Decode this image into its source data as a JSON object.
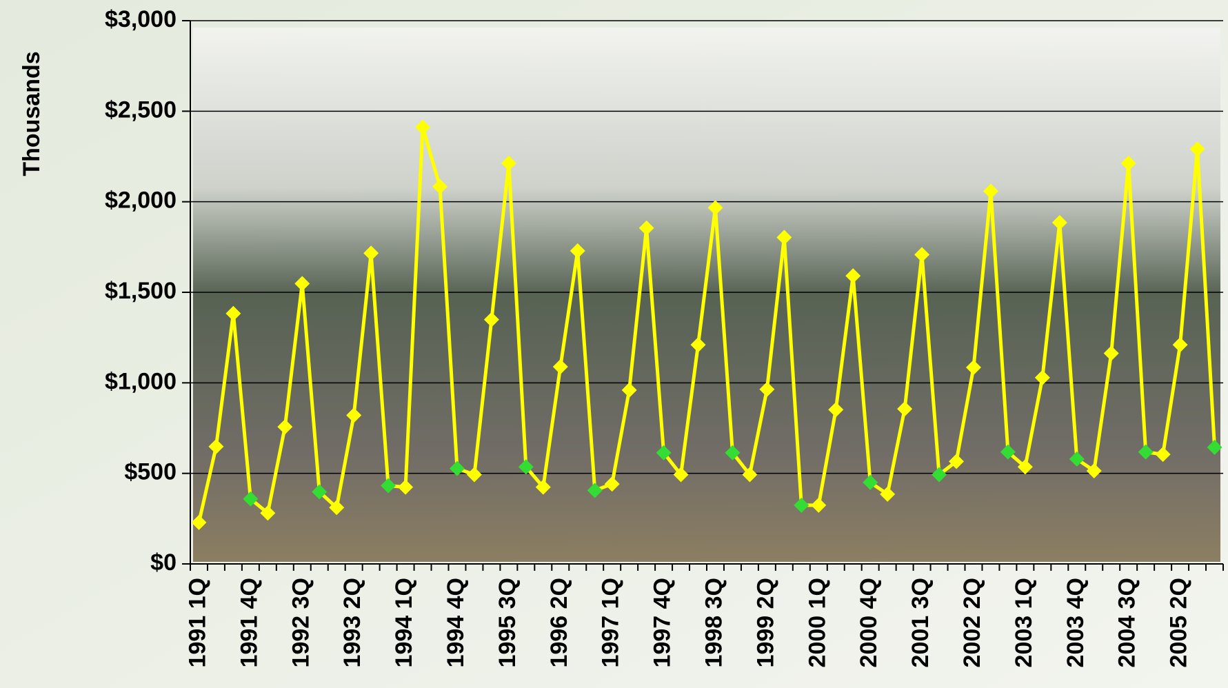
{
  "chart_data": {
    "type": "line",
    "y_label": "Thousands",
    "categories": [
      "1991 1Q",
      null,
      null,
      "1991 4Q",
      null,
      null,
      "1992 3Q",
      null,
      null,
      "1993 2Q",
      null,
      null,
      "1994 1Q",
      null,
      null,
      "1994 4Q",
      null,
      null,
      "1995 3Q",
      null,
      null,
      "1996 2Q",
      null,
      null,
      "1997 1Q",
      null,
      null,
      "1997 4Q",
      null,
      null,
      "1998 3Q",
      null,
      null,
      "1999 2Q",
      null,
      null,
      "2000 1Q",
      null,
      null,
      "2000 4Q",
      null,
      null,
      "2001 3Q",
      null,
      null,
      "2002 2Q",
      null,
      null,
      "2003 1Q",
      null,
      null,
      "2003 4Q",
      null,
      null,
      "2004 3Q",
      null,
      null,
      "2005 2Q",
      null,
      null
    ],
    "series": [
      {
        "color": "#ffff00",
        "values": [
          229,
          648,
          1383,
          359,
          281,
          757,
          1548,
          398,
          311,
          821,
          1716,
          432,
          424,
          2412,
          2084,
          527,
          493,
          1349,
          2213,
          536,
          424,
          1089,
          1729,
          406,
          441,
          960,
          1855,
          614,
          493,
          1210,
          1967,
          614,
          493,
          964,
          1803,
          324,
          324,
          852,
          1591,
          450,
          385,
          856,
          1708,
          493,
          566,
          1085,
          2058,
          618,
          536,
          1029,
          1885,
          579,
          514,
          1163,
          2213,
          618,
          605,
          1210,
          2291,
          644
        ],
        "marker_colors": [
          "#ffff00",
          "#ffff00",
          "#ffff00",
          "#33dd33",
          "#ffff00",
          "#ffff00",
          "#ffff00",
          "#33dd33",
          "#ffff00",
          "#ffff00",
          "#ffff00",
          "#33dd33",
          "#ffff00",
          "#ffff00",
          "#ffff00",
          "#33dd33",
          "#ffff00",
          "#ffff00",
          "#ffff00",
          "#33dd33",
          "#ffff00",
          "#ffff00",
          "#ffff00",
          "#33dd33",
          "#ffff00",
          "#ffff00",
          "#ffff00",
          "#33dd33",
          "#ffff00",
          "#ffff00",
          "#ffff00",
          "#33dd33",
          "#ffff00",
          "#ffff00",
          "#ffff00",
          "#33dd33",
          "#ffff00",
          "#ffff00",
          "#ffff00",
          "#33dd33",
          "#ffff00",
          "#ffff00",
          "#ffff00",
          "#33dd33",
          "#ffff00",
          "#ffff00",
          "#ffff00",
          "#33dd33",
          "#ffff00",
          "#ffff00",
          "#ffff00",
          "#33dd33",
          "#ffff00",
          "#ffff00",
          "#ffff00",
          "#33dd33",
          "#ffff00",
          "#ffff00",
          "#ffff00",
          "#33dd33"
        ]
      }
    ],
    "ylim": [
      0,
      3000
    ],
    "yticks": [
      {
        "value": 0,
        "label": "$0"
      },
      {
        "value": 500,
        "label": "$500"
      },
      {
        "value": 1000,
        "label": "$1,000"
      },
      {
        "value": 1500,
        "label": "$1,500"
      },
      {
        "value": 2000,
        "label": "$2,000"
      },
      {
        "value": 2500,
        "label": "$2,500"
      },
      {
        "value": 3000,
        "label": "$3,000"
      }
    ],
    "grid": true
  }
}
